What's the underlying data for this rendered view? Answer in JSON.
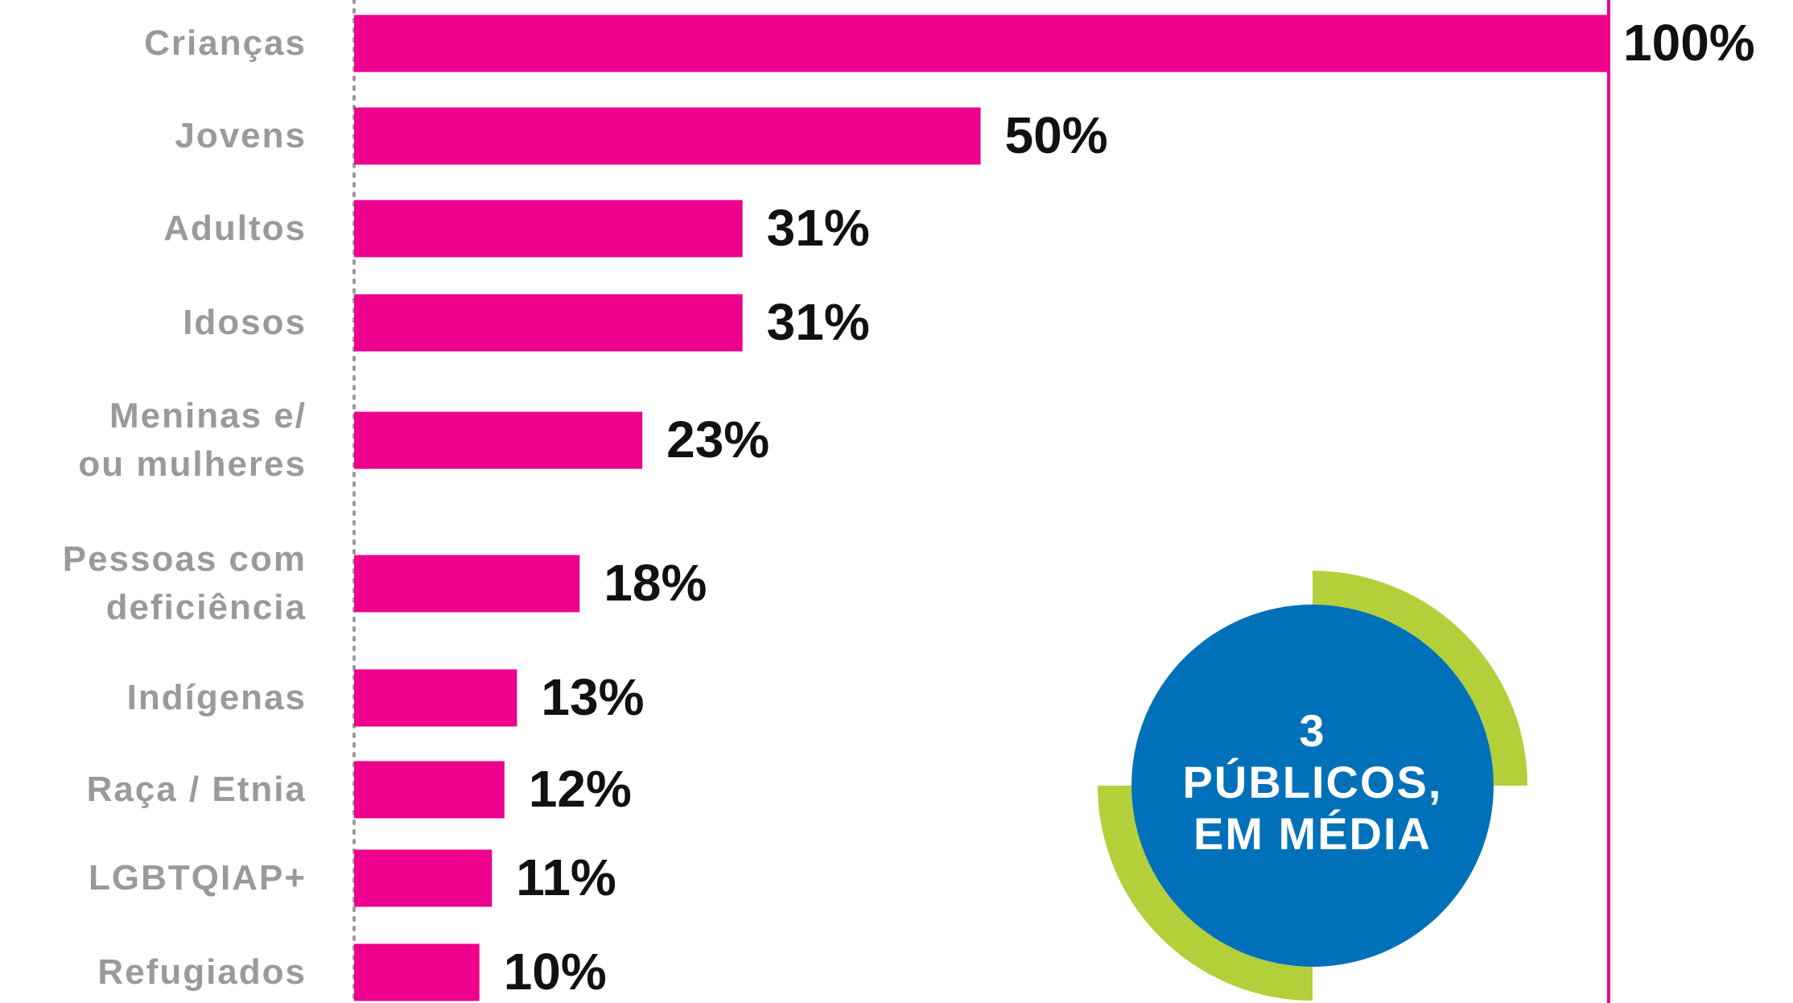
{
  "chart_data": {
    "type": "bar",
    "orientation": "horizontal",
    "categories": [
      "Crianças",
      "Jovens",
      "Adultos",
      "Idosos",
      "Meninas e/ ou mulheres",
      "Pessoas com deficiência",
      "Indígenas",
      "Raça / Etnia",
      "LGBTQIAP+",
      "Refugiados"
    ],
    "values": [
      100,
      50,
      31,
      31,
      23,
      18,
      13,
      12,
      11,
      10
    ],
    "value_labels": [
      "100%",
      "50%",
      "31%",
      "31%",
      "23%",
      "18%",
      "13%",
      "12%",
      "11%",
      "10%"
    ],
    "color": "#ec008c",
    "xlim": [
      0,
      100
    ],
    "annotation": [
      "3",
      "PÚBLICOS,",
      "EM MÉDIA"
    ]
  }
}
